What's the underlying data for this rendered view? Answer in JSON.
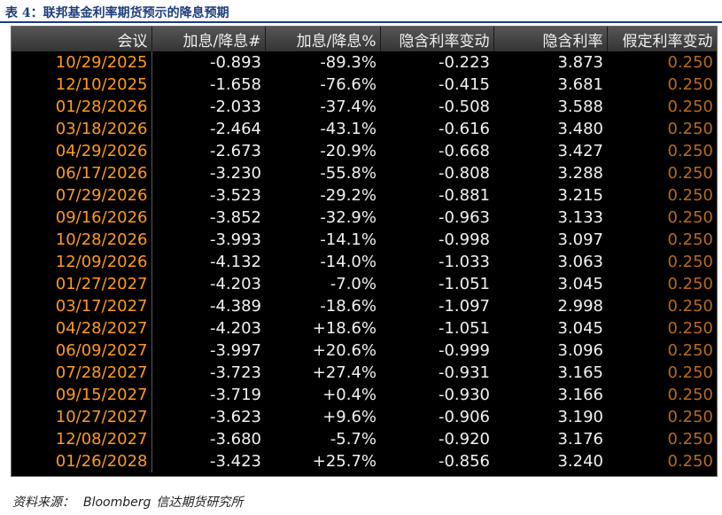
{
  "caption": "表 4：联邦基金利率期货预示的降息预期",
  "table": {
    "headers": [
      "会议",
      "加息/降息#",
      "加息/降息%",
      "隐含利率变动",
      "隐含利率",
      "假定利率变动"
    ],
    "rows": [
      [
        "10/29/2025",
        "-0.893",
        "-89.3%",
        "-0.223",
        "3.873",
        "0.250"
      ],
      [
        "12/10/2025",
        "-1.658",
        "-76.6%",
        "-0.415",
        "3.681",
        "0.250"
      ],
      [
        "01/28/2026",
        "-2.033",
        "-37.4%",
        "-0.508",
        "3.588",
        "0.250"
      ],
      [
        "03/18/2026",
        "-2.464",
        "-43.1%",
        "-0.616",
        "3.480",
        "0.250"
      ],
      [
        "04/29/2026",
        "-2.673",
        "-20.9%",
        "-0.668",
        "3.427",
        "0.250"
      ],
      [
        "06/17/2026",
        "-3.230",
        "-55.8%",
        "-0.808",
        "3.288",
        "0.250"
      ],
      [
        "07/29/2026",
        "-3.523",
        "-29.2%",
        "-0.881",
        "3.215",
        "0.250"
      ],
      [
        "09/16/2026",
        "-3.852",
        "-32.9%",
        "-0.963",
        "3.133",
        "0.250"
      ],
      [
        "10/28/2026",
        "-3.993",
        "-14.1%",
        "-0.998",
        "3.097",
        "0.250"
      ],
      [
        "12/09/2026",
        "-4.132",
        "-14.0%",
        "-1.033",
        "3.063",
        "0.250"
      ],
      [
        "01/27/2027",
        "-4.203",
        "-7.0%",
        "-1.051",
        "3.045",
        "0.250"
      ],
      [
        "03/17/2027",
        "-4.389",
        "-18.6%",
        "-1.097",
        "2.998",
        "0.250"
      ],
      [
        "04/28/2027",
        "-4.203",
        "+18.6%",
        "-1.051",
        "3.045",
        "0.250"
      ],
      [
        "06/09/2027",
        "-3.997",
        "+20.6%",
        "-0.999",
        "3.096",
        "0.250"
      ],
      [
        "07/28/2027",
        "-3.723",
        "+27.4%",
        "-0.931",
        "3.165",
        "0.250"
      ],
      [
        "09/15/2027",
        "-3.719",
        "+0.4%",
        "-0.930",
        "3.166",
        "0.250"
      ],
      [
        "10/27/2027",
        "-3.623",
        "+9.6%",
        "-0.906",
        "3.190",
        "0.250"
      ],
      [
        "12/08/2027",
        "-3.680",
        "-5.7%",
        "-0.920",
        "3.176",
        "0.250"
      ],
      [
        "01/26/2028",
        "-3.423",
        "+25.7%",
        "-0.856",
        "3.240",
        "0.250"
      ]
    ]
  },
  "footer": {
    "label": "资料来源：",
    "source": "Bloomberg",
    "org": "信达期货研究所"
  }
}
